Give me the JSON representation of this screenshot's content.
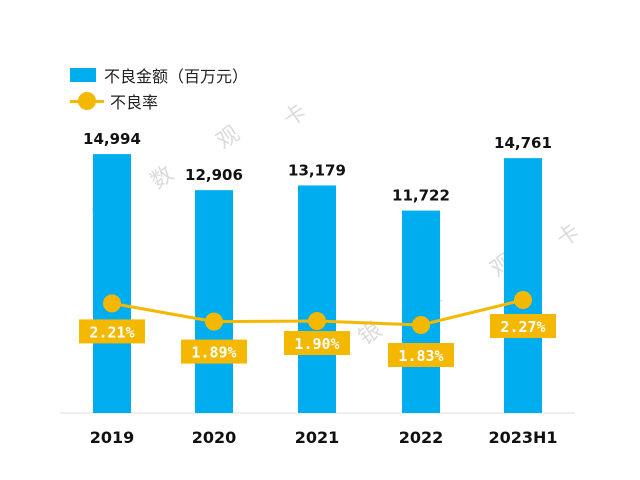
{
  "legend": {
    "bar_label": "不良金额（百万元）",
    "line_label": "不良率"
  },
  "watermark": [
    "卡",
    "观",
    "数",
    "银",
    "卡",
    "观",
    "数",
    "银"
  ],
  "colors": {
    "bar": "#00AEEF",
    "line": "#F5B800",
    "axis": "#dddddd",
    "text": "#111111",
    "label_text": "#ffffff"
  },
  "chart_data": {
    "type": "bar",
    "categories": [
      "2019",
      "2020",
      "2021",
      "2022",
      "2023H1"
    ],
    "series": [
      {
        "name": "不良金额（百万元）",
        "type": "bar",
        "values": [
          14994,
          12906,
          13179,
          11722,
          14761
        ],
        "labels": [
          "14,994",
          "12,906",
          "13,179",
          "11,722",
          "14,761"
        ]
      },
      {
        "name": "不良率",
        "type": "line",
        "values": [
          2.21,
          1.89,
          1.9,
          1.83,
          2.27
        ],
        "labels": [
          "2.21%",
          "1.89%",
          "1.90%",
          "1.83%",
          "2.27%"
        ]
      }
    ],
    "title": "",
    "xlabel": "",
    "ylabel": ""
  }
}
